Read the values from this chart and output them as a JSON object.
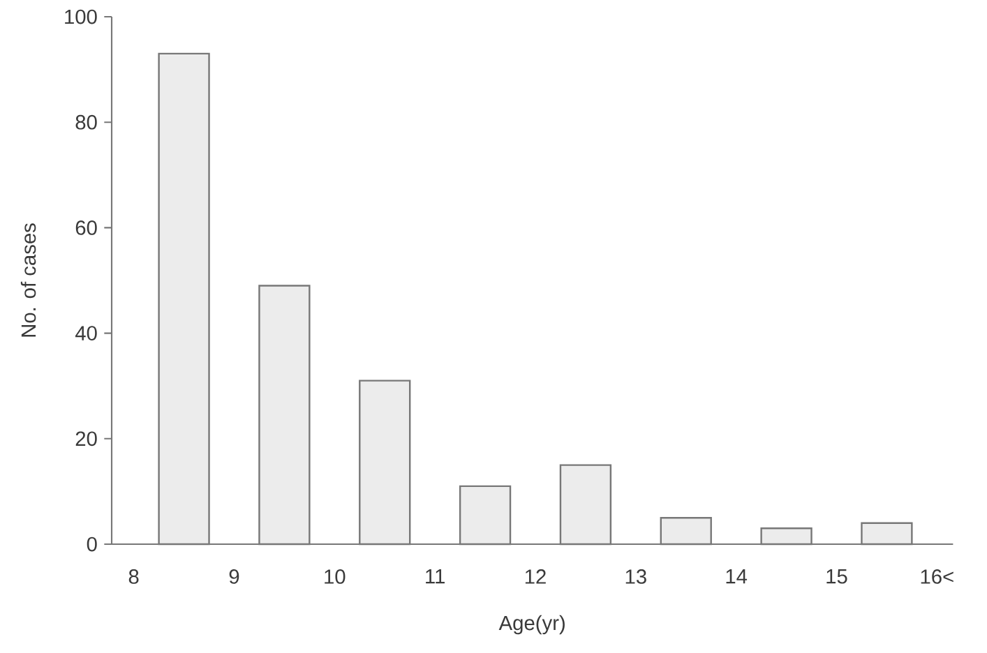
{
  "chart_data": {
    "type": "bar",
    "xlabel": "Age(yr)",
    "ylabel": "No. of cases",
    "x": [
      8.5,
      9.5,
      10.5,
      11.5,
      12.5,
      13.5,
      14.5,
      15.5
    ],
    "values": [
      93,
      49,
      31,
      11,
      15,
      5,
      3,
      4
    ],
    "color": "#ececec",
    "xlim": [
      7.78,
      16.16
    ],
    "xticks": [
      8,
      9,
      10,
      11,
      12,
      13,
      14,
      15,
      {
        "value": 16,
        "label": "16<"
      }
    ],
    "ylim": [
      0,
      100
    ],
    "yticks": [
      0,
      20,
      40,
      60,
      80,
      100
    ]
  }
}
